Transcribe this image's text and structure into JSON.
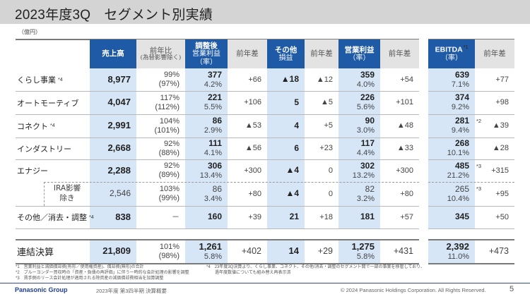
{
  "page": {
    "title": "2023年度3Q　セグメント別実績",
    "unit": "（億円）",
    "page_number": "5"
  },
  "colors": {
    "header_blue": "#1f5aa6",
    "highlight_blue": "#d6e6f7",
    "header_grey": "#e3e3e3",
    "title_bar": "#d4d4d4",
    "brand": "#1f3f99"
  },
  "table": {
    "headers": [
      {
        "line1": "売上高",
        "line2": "",
        "line3": "",
        "style": "blue"
      },
      {
        "line1": "前年比",
        "line2": "(為替影響除く)",
        "line3": "",
        "style": "grey"
      },
      {
        "line1": "調整後",
        "line2": "営業利益",
        "line3": "（率）",
        "style": "blue"
      },
      {
        "line1": "前年差",
        "line2": "",
        "line3": "",
        "style": "grey"
      },
      {
        "line1": "その他",
        "line2": "損益",
        "line3": "",
        "style": "blue"
      },
      {
        "line1": "前年差",
        "line2": "",
        "line3": "",
        "style": "grey"
      },
      {
        "line1": "営業利益",
        "line2": "（率）",
        "line3": "",
        "style": "blue"
      },
      {
        "line1": "前年差",
        "line2": "",
        "line3": "",
        "style": "grey"
      },
      {
        "line1": "EBITDA",
        "sup": "*1",
        "line2": "（率）",
        "line3": "",
        "style": "blue"
      },
      {
        "line1": "前年差",
        "line2": "",
        "line3": "",
        "style": "grey"
      }
    ],
    "rows": [
      {
        "segment": "くらし事業",
        "note": "*4",
        "sales": "8,977",
        "yoy": "99%",
        "yoy_fx": "(97%)",
        "adj_op": "377",
        "adj_op_rate": "4.2%",
        "adj_op_diff": "+66",
        "other": "▲18",
        "other_diff": "▲12",
        "op": "359",
        "op_rate": "4.0%",
        "op_diff": "+54",
        "ebitda": "639",
        "ebitda_note": "",
        "ebitda_rate": "7.1%",
        "ebitda_diff": "+77"
      },
      {
        "segment": "オートモーティブ",
        "note": "",
        "sales": "4,047",
        "yoy": "117%",
        "yoy_fx": "(112%)",
        "adj_op": "221",
        "adj_op_rate": "5.5%",
        "adj_op_diff": "+106",
        "other": "5",
        "other_diff": "▲5",
        "op": "226",
        "op_rate": "5.6%",
        "op_diff": "+101",
        "ebitda": "374",
        "ebitda_note": "",
        "ebitda_rate": "9.2%",
        "ebitda_diff": "+98"
      },
      {
        "segment": "コネクト",
        "note": "*4",
        "sales": "2,991",
        "yoy": "104%",
        "yoy_fx": "(101%)",
        "adj_op": "86",
        "adj_op_rate": "2.9%",
        "adj_op_diff": "▲53",
        "other": "4",
        "other_diff": "+5",
        "op": "90",
        "op_rate": "3.0%",
        "op_diff": "▲48",
        "ebitda": "281",
        "ebitda_note": "*2",
        "ebitda_rate": "9.4%",
        "ebitda_diff": "▲39"
      },
      {
        "segment": "インダストリー",
        "note": "",
        "sales": "2,668",
        "yoy": "92%",
        "yoy_fx": "(88%)",
        "adj_op": "111",
        "adj_op_rate": "4.1%",
        "adj_op_diff": "▲56",
        "other": "6",
        "other_diff": "+23",
        "op": "117",
        "op_rate": "4.4%",
        "op_diff": "▲33",
        "ebitda": "268",
        "ebitda_note": "",
        "ebitda_rate": "10.1%",
        "ebitda_diff": "▲28"
      },
      {
        "segment": "エナジー",
        "note": "",
        "sales": "2,288",
        "yoy": "92%",
        "yoy_fx": "(89%)",
        "adj_op": "306",
        "adj_op_rate": "13.4%",
        "adj_op_diff": "+300",
        "other": "▲4",
        "other_diff": "0",
        "op": "302",
        "op_rate": "13.2%",
        "op_diff": "+300",
        "ebitda": "485",
        "ebitda_note": "*3",
        "ebitda_rate": "21.2%",
        "ebitda_diff": "+315"
      },
      {
        "segment_line1": "IRA影響",
        "segment_line2": "除き",
        "sales": "2,546",
        "yoy": "103%",
        "yoy_fx": "(99%)",
        "adj_op": "86",
        "adj_op_rate": "3.4%",
        "adj_op_diff": "+80",
        "other": "▲4",
        "other_diff": "0",
        "op": "82",
        "op_rate": "3.2%",
        "op_diff": "+80",
        "ebitda": "265",
        "ebitda_note": "*3",
        "ebitda_rate": "10.4%",
        "ebitda_diff": "+95"
      },
      {
        "segment": "その他／消去・調整",
        "note": "*4",
        "sales": "838",
        "yoy": "－",
        "yoy_fx": "",
        "adj_op": "160",
        "adj_op_rate": "",
        "adj_op_diff": "+39",
        "other": "21",
        "other_diff": "+18",
        "op": "181",
        "op_rate": "",
        "op_diff": "+57",
        "ebitda": "345",
        "ebitda_note": "",
        "ebitda_rate": "",
        "ebitda_diff": "+50"
      }
    ],
    "total": {
      "segment": "連結決算",
      "sales": "21,809",
      "yoy": "101%",
      "yoy_fx": "(98%)",
      "adj_op": "1,261",
      "adj_op_rate": "5.8%",
      "adj_op_diff": "+402",
      "other": "14",
      "other_diff": "+29",
      "op": "1,275",
      "op_rate": "5.8%",
      "op_diff": "+431",
      "ebitda": "2,392",
      "ebitda_rate": "11.0%",
      "ebitda_diff": "+473"
    }
  },
  "footnotes": {
    "left": [
      "*1　営業利益と減価償却費(有形／使用権資産)、償却費(無形)の合計",
      "*2　ブルーヨンダー買収時の「資産・負債の再評価」に伴う一時的な会計処理の影響を調整",
      "*3　賃手側のリース会計処理が適用される除資産の減価償却費相当を加算調整"
    ],
    "right": [
      "*4　23年度3Q決算より、くらし事業、コネクト、その他/消去・調整のセグメント間で一部の事業を移管しており、",
      "　　過年度数値についても組み替え再表示済"
    ]
  },
  "footer": {
    "logo": "Panasonic Group",
    "doc_title": "2023年度 第3四半期 決算概要",
    "copyright": "© 2024 Panasonic Holdings Corporation. All Rights Reserved."
  }
}
